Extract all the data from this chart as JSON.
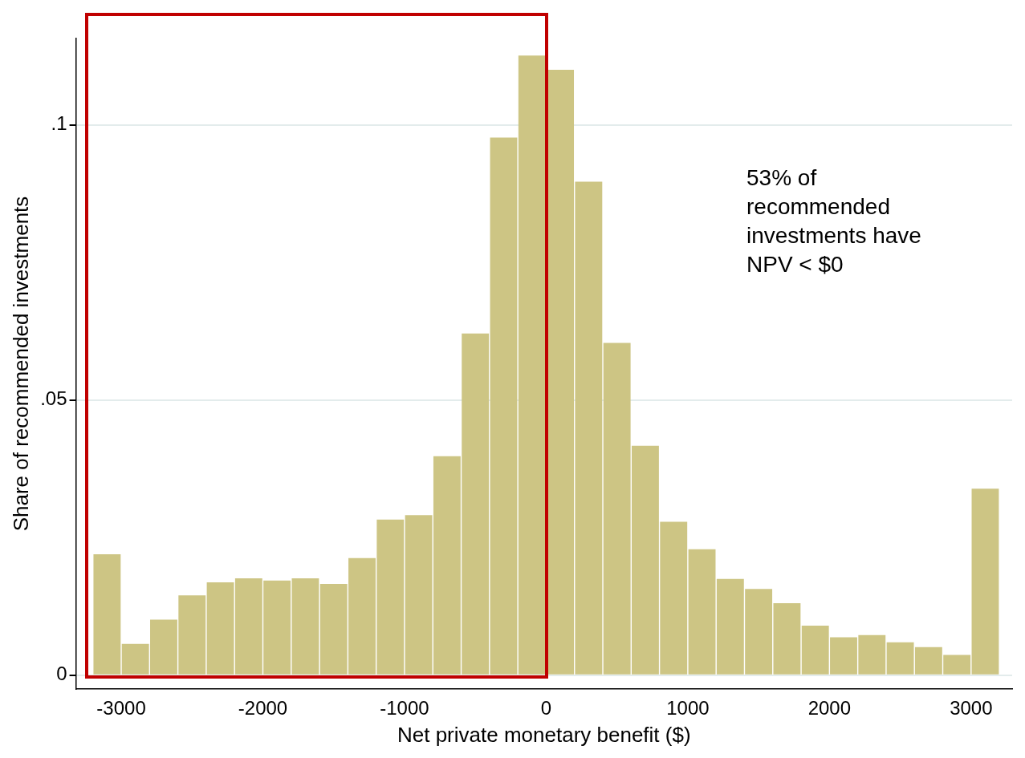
{
  "chart_data": {
    "type": "histogram",
    "xlabel": "Net private monetary benefit ($)",
    "ylabel": "Share of recommended investments",
    "bins": [
      -3200,
      -3000,
      -2800,
      -2600,
      -2400,
      -2200,
      -2000,
      -1800,
      -1600,
      -1400,
      -1200,
      -1000,
      -800,
      -600,
      -400,
      -200,
      0,
      200,
      400,
      600,
      800,
      1000,
      1200,
      1400,
      1600,
      1800,
      2000,
      2200,
      2400,
      2600,
      2800,
      3000,
      3200
    ],
    "values": [
      0.022,
      0.0057,
      0.0101,
      0.0145,
      0.0169,
      0.0176,
      0.0172,
      0.0176,
      0.0166,
      0.0213,
      0.0283,
      0.0291,
      0.0398,
      0.0621,
      0.0977,
      0.1126,
      0.11,
      0.0897,
      0.0604,
      0.0417,
      0.0279,
      0.0229,
      0.0175,
      0.0157,
      0.0131,
      0.009,
      0.0069,
      0.0073,
      0.006,
      0.0051,
      0.0037,
      0.0339
    ],
    "color": "#cdc584",
    "xlim": [
      -3320,
      3290
    ],
    "xticks": [
      -3000,
      -2000,
      -1000,
      0,
      1000,
      2000,
      3000
    ],
    "ylim": [
      -0.0025,
      0.1157
    ],
    "yticks": [
      {
        "value": 0,
        "label": "0"
      },
      {
        "value": 0.05,
        "label": ".05"
      },
      {
        "value": 0.1,
        "label": ".1"
      }
    ],
    "grid": "y",
    "legend": false,
    "annotations": [
      "53% of recommended investments have NPV < $0"
    ]
  }
}
